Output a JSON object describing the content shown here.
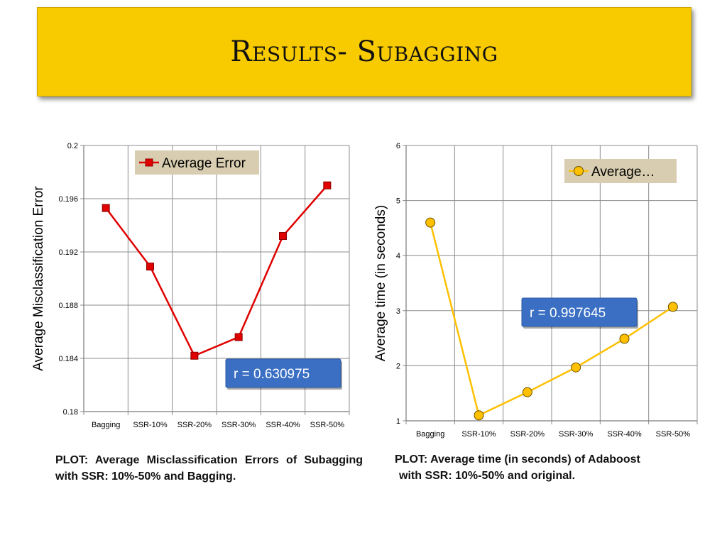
{
  "slide": {
    "title": "Results- Subagging"
  },
  "captions": {
    "left": "PLOT: Average Misclassification Errors of Subagging with SSR: 10%-50% and Bagging.",
    "right_line1": "PLOT: Average time (in seconds) of Adaboost",
    "right_line2": "with SSR: 10%-50% and original."
  },
  "colors": {
    "banner": "#f8ca00",
    "series_left": "#e00000",
    "series_right": "#ffc000",
    "legend_bg": "#d8cdb0",
    "rbox": "#3a6fc4"
  },
  "chart_data": [
    {
      "type": "line",
      "categories": [
        "Bagging",
        "SSR-10%",
        "SSR-20%",
        "SSR-30%",
        "SSR-40%",
        "SSR-50%"
      ],
      "series": [
        {
          "name": "Average Error",
          "values": [
            0.1953,
            0.1909,
            0.1842,
            0.1856,
            0.1932,
            0.197
          ],
          "marker": "square"
        }
      ],
      "ylabel": "Average Misclassification Error",
      "xlabel": "",
      "ylim": [
        0.18,
        0.2
      ],
      "yticks": [
        "0.18",
        "0.184",
        "0.188",
        "0.192",
        "0.196",
        "0.2"
      ],
      "ytick_values": [
        0.18,
        0.184,
        0.188,
        0.192,
        0.196,
        0.2
      ],
      "grid": true,
      "legend_position": "top",
      "annotation": "r = 0.630975"
    },
    {
      "type": "line",
      "categories": [
        "Bagging",
        "SSR-10%",
        "SSR-20%",
        "SSR-30%",
        "SSR-40%",
        "SSR-50%"
      ],
      "series": [
        {
          "name": "Average…",
          "values": [
            4.6,
            1.1,
            1.52,
            1.97,
            2.49,
            3.07
          ],
          "marker": "circle"
        }
      ],
      "ylabel": "Average time (in seconds)",
      "xlabel": "",
      "ylim": [
        1,
        6
      ],
      "yticks": [
        "1",
        "2",
        "3",
        "4",
        "5",
        "6"
      ],
      "ytick_values": [
        1,
        2,
        3,
        4,
        5,
        6
      ],
      "grid": true,
      "legend_position": "top-right",
      "annotation": "r = 0.997645"
    }
  ]
}
